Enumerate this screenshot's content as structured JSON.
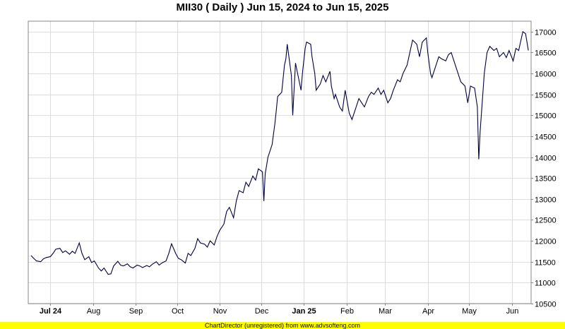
{
  "chart_data": {
    "type": "line",
    "title": "MII30 ( Daily ) Jun 15, 2024 to Jun 15, 2025",
    "xlabel": "",
    "ylabel": "",
    "x_range": [
      "2024-06-15",
      "2025-06-15"
    ],
    "ylim": [
      10500,
      17250
    ],
    "y_ticks": [
      10500,
      11000,
      11500,
      12000,
      12500,
      13000,
      13500,
      14000,
      14500,
      15000,
      15500,
      16000,
      16500,
      17000
    ],
    "x_ticks": [
      {
        "date": "2024-07-01",
        "label": "Jul 24",
        "bold": true
      },
      {
        "date": "2024-08-01",
        "label": "Aug",
        "bold": false
      },
      {
        "date": "2024-09-01",
        "label": "Sep",
        "bold": false
      },
      {
        "date": "2024-10-01",
        "label": "Oct",
        "bold": false
      },
      {
        "date": "2024-11-01",
        "label": "Nov",
        "bold": false
      },
      {
        "date": "2024-12-01",
        "label": "Dec",
        "bold": false
      },
      {
        "date": "2025-01-01",
        "label": "Jan 25",
        "bold": true
      },
      {
        "date": "2025-02-01",
        "label": "Feb",
        "bold": false
      },
      {
        "date": "2025-03-01",
        "label": "Mar",
        "bold": false
      },
      {
        "date": "2025-04-01",
        "label": "Apr",
        "bold": false
      },
      {
        "date": "2025-05-01",
        "label": "May",
        "bold": false
      },
      {
        "date": "2025-06-01",
        "label": "Jun",
        "bold": false
      }
    ],
    "grid": true,
    "y_axis_side": "right",
    "line_color": "#000040",
    "series": [
      {
        "values": [
          [
            "2024-06-17",
            11650
          ],
          [
            "2024-06-19",
            11580
          ],
          [
            "2024-06-21",
            11520
          ],
          [
            "2024-06-24",
            11500
          ],
          [
            "2024-06-26",
            11570
          ],
          [
            "2024-06-28",
            11600
          ],
          [
            "2024-07-01",
            11620
          ],
          [
            "2024-07-03",
            11700
          ],
          [
            "2024-07-05",
            11800
          ],
          [
            "2024-07-08",
            11820
          ],
          [
            "2024-07-10",
            11720
          ],
          [
            "2024-07-12",
            11760
          ],
          [
            "2024-07-15",
            11680
          ],
          [
            "2024-07-17",
            11750
          ],
          [
            "2024-07-19",
            11700
          ],
          [
            "2024-07-22",
            11950
          ],
          [
            "2024-07-24",
            11700
          ],
          [
            "2024-07-26",
            11550
          ],
          [
            "2024-07-29",
            11620
          ],
          [
            "2024-07-31",
            11480
          ],
          [
            "2024-08-02",
            11520
          ],
          [
            "2024-08-05",
            11350
          ],
          [
            "2024-08-07",
            11280
          ],
          [
            "2024-08-09",
            11350
          ],
          [
            "2024-08-12",
            11200
          ],
          [
            "2024-08-14",
            11210
          ],
          [
            "2024-08-16",
            11400
          ],
          [
            "2024-08-19",
            11510
          ],
          [
            "2024-08-21",
            11420
          ],
          [
            "2024-08-23",
            11400
          ],
          [
            "2024-08-26",
            11450
          ],
          [
            "2024-08-28",
            11380
          ],
          [
            "2024-08-30",
            11350
          ],
          [
            "2024-09-02",
            11420
          ],
          [
            "2024-09-04",
            11400
          ],
          [
            "2024-09-06",
            11360
          ],
          [
            "2024-09-09",
            11410
          ],
          [
            "2024-09-11",
            11380
          ],
          [
            "2024-09-13",
            11440
          ],
          [
            "2024-09-16",
            11500
          ],
          [
            "2024-09-18",
            11420
          ],
          [
            "2024-09-20",
            11470
          ],
          [
            "2024-09-23",
            11520
          ],
          [
            "2024-09-25",
            11700
          ],
          [
            "2024-09-27",
            11930
          ],
          [
            "2024-09-30",
            11700
          ],
          [
            "2024-10-02",
            11580
          ],
          [
            "2024-10-04",
            11550
          ],
          [
            "2024-10-07",
            11470
          ],
          [
            "2024-10-09",
            11700
          ],
          [
            "2024-10-11",
            11650
          ],
          [
            "2024-10-14",
            11820
          ],
          [
            "2024-10-16",
            12050
          ],
          [
            "2024-10-18",
            11950
          ],
          [
            "2024-10-21",
            11920
          ],
          [
            "2024-10-23",
            11850
          ],
          [
            "2024-10-25",
            12000
          ],
          [
            "2024-10-28",
            11900
          ],
          [
            "2024-10-30",
            12100
          ],
          [
            "2024-11-01",
            12250
          ],
          [
            "2024-11-04",
            12400
          ],
          [
            "2024-11-06",
            12700
          ],
          [
            "2024-11-08",
            12800
          ],
          [
            "2024-11-11",
            12550
          ],
          [
            "2024-11-13",
            12950
          ],
          [
            "2024-11-15",
            13200
          ],
          [
            "2024-11-18",
            13150
          ],
          [
            "2024-11-20",
            13400
          ],
          [
            "2024-11-22",
            13300
          ],
          [
            "2024-11-25",
            13550
          ],
          [
            "2024-11-27",
            13450
          ],
          [
            "2024-11-29",
            13720
          ],
          [
            "2024-12-02",
            13650
          ],
          [
            "2024-12-03",
            12950
          ],
          [
            "2024-12-04",
            13600
          ],
          [
            "2024-12-06",
            14000
          ],
          [
            "2024-12-09",
            14300
          ],
          [
            "2024-12-11",
            14800
          ],
          [
            "2024-12-12",
            15100
          ],
          [
            "2024-12-13",
            15450
          ],
          [
            "2024-12-16",
            15550
          ],
          [
            "2024-12-18",
            16200
          ],
          [
            "2024-12-19",
            16350
          ],
          [
            "2024-12-20",
            16700
          ],
          [
            "2024-12-23",
            15950
          ],
          [
            "2024-12-24",
            15000
          ],
          [
            "2024-12-26",
            16250
          ],
          [
            "2024-12-30",
            15600
          ],
          [
            "2024-12-31",
            16000
          ],
          [
            "2025-01-02",
            16600
          ],
          [
            "2025-01-03",
            16750
          ],
          [
            "2025-01-06",
            16700
          ],
          [
            "2025-01-07",
            16400
          ],
          [
            "2025-01-09",
            16000
          ],
          [
            "2025-01-10",
            15600
          ],
          [
            "2025-01-13",
            15750
          ],
          [
            "2025-01-15",
            15950
          ],
          [
            "2025-01-17",
            15800
          ],
          [
            "2025-01-20",
            16050
          ],
          [
            "2025-01-21",
            15700
          ],
          [
            "2025-01-23",
            15400
          ],
          [
            "2025-01-24",
            15500
          ],
          [
            "2025-01-27",
            15200
          ],
          [
            "2025-01-29",
            15100
          ],
          [
            "2025-01-31",
            15600
          ],
          [
            "2025-02-03",
            15050
          ],
          [
            "2025-02-05",
            14900
          ],
          [
            "2025-02-07",
            15100
          ],
          [
            "2025-02-10",
            15400
          ],
          [
            "2025-02-12",
            15300
          ],
          [
            "2025-02-14",
            15200
          ],
          [
            "2025-02-17",
            15450
          ],
          [
            "2025-02-19",
            15550
          ],
          [
            "2025-02-21",
            15500
          ],
          [
            "2025-02-24",
            15650
          ],
          [
            "2025-02-26",
            15500
          ],
          [
            "2025-02-28",
            15600
          ],
          [
            "2025-03-03",
            15300
          ],
          [
            "2025-03-05",
            15400
          ],
          [
            "2025-03-07",
            15600
          ],
          [
            "2025-03-10",
            15850
          ],
          [
            "2025-03-12",
            15800
          ],
          [
            "2025-03-14",
            16000
          ],
          [
            "2025-03-17",
            16200
          ],
          [
            "2025-03-19",
            16500
          ],
          [
            "2025-03-21",
            16800
          ],
          [
            "2025-03-24",
            16700
          ],
          [
            "2025-03-26",
            16400
          ],
          [
            "2025-03-28",
            16750
          ],
          [
            "2025-03-31",
            16850
          ],
          [
            "2025-04-01",
            16500
          ],
          [
            "2025-04-03",
            16000
          ],
          [
            "2025-04-04",
            15900
          ],
          [
            "2025-04-07",
            16200
          ],
          [
            "2025-04-09",
            16400
          ],
          [
            "2025-04-11",
            16350
          ],
          [
            "2025-04-14",
            16300
          ],
          [
            "2025-04-16",
            16450
          ],
          [
            "2025-04-18",
            16500
          ],
          [
            "2025-04-21",
            16200
          ],
          [
            "2025-04-23",
            16000
          ],
          [
            "2025-04-25",
            15800
          ],
          [
            "2025-04-28",
            15700
          ],
          [
            "2025-04-30",
            15300
          ],
          [
            "2025-05-02",
            15700
          ],
          [
            "2025-05-05",
            15650
          ],
          [
            "2025-05-07",
            15200
          ],
          [
            "2025-05-08",
            13950
          ],
          [
            "2025-05-09",
            14600
          ],
          [
            "2025-05-12",
            16000
          ],
          [
            "2025-05-14",
            16500
          ],
          [
            "2025-05-16",
            16650
          ],
          [
            "2025-05-19",
            16550
          ],
          [
            "2025-05-21",
            16600
          ],
          [
            "2025-05-23",
            16400
          ],
          [
            "2025-05-26",
            16500
          ],
          [
            "2025-05-28",
            16380
          ],
          [
            "2025-05-30",
            16550
          ],
          [
            "2025-06-02",
            16300
          ],
          [
            "2025-06-04",
            16600
          ],
          [
            "2025-06-06",
            16550
          ],
          [
            "2025-06-09",
            17000
          ],
          [
            "2025-06-11",
            16950
          ],
          [
            "2025-06-13",
            16550
          ]
        ]
      }
    ]
  },
  "footer": {
    "text": "ChartDirector (unregistered) from www.advsofteng.com",
    "bar_color": "#ffff00"
  }
}
